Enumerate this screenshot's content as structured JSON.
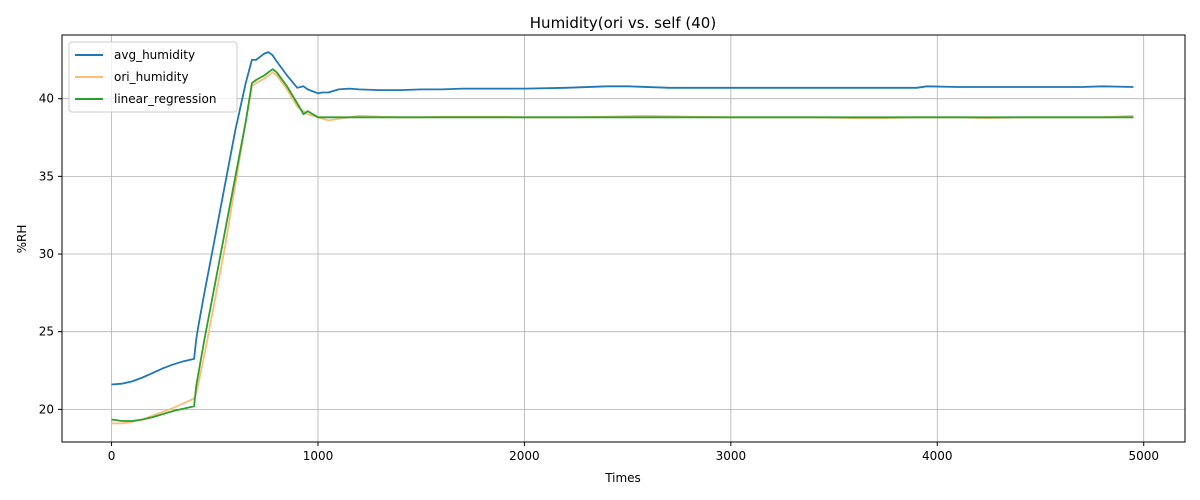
{
  "chart_data": {
    "type": "line",
    "title": "Humidity(ori vs. self (40)",
    "xlabel": "Times",
    "ylabel": "%RH",
    "xlim": [
      -240,
      5200
    ],
    "ylim": [
      17.9,
      44.1
    ],
    "xticks": [
      0,
      1000,
      2000,
      3000,
      4000,
      5000
    ],
    "yticks": [
      20,
      25,
      30,
      35,
      40
    ],
    "grid": true,
    "legend": "top-left",
    "series": [
      {
        "name": "avg_humidity",
        "color": "#1f77b4",
        "x": [
          0,
          50,
          100,
          150,
          200,
          250,
          300,
          350,
          400,
          410,
          420,
          450,
          500,
          550,
          600,
          650,
          680,
          700,
          720,
          740,
          760,
          780,
          800,
          850,
          900,
          930,
          950,
          1000,
          1020,
          1050,
          1100,
          1150,
          1200,
          1300,
          1400,
          1500,
          1600,
          1700,
          1800,
          2000,
          2200,
          2400,
          2500,
          2700,
          2900,
          3000,
          3200,
          3400,
          3550,
          3700,
          3900,
          3950,
          4100,
          4300,
          4500,
          4700,
          4800,
          4950
        ],
        "y": [
          21.6,
          21.65,
          21.8,
          22.05,
          22.35,
          22.65,
          22.9,
          23.1,
          23.25,
          24.5,
          25.3,
          27.5,
          31.0,
          34.5,
          38.0,
          41.0,
          42.5,
          42.5,
          42.7,
          42.9,
          43.0,
          42.8,
          42.4,
          41.5,
          40.7,
          40.8,
          40.6,
          40.35,
          40.4,
          40.4,
          40.6,
          40.65,
          40.6,
          40.55,
          40.55,
          40.6,
          40.6,
          40.65,
          40.65,
          40.65,
          40.7,
          40.8,
          40.8,
          40.7,
          40.7,
          40.7,
          40.7,
          40.7,
          40.7,
          40.7,
          40.7,
          40.8,
          40.75,
          40.75,
          40.75,
          40.75,
          40.8,
          40.75
        ]
      },
      {
        "name": "ori_humidity",
        "color": "#ffbb78",
        "x": [
          0,
          50,
          100,
          150,
          200,
          250,
          300,
          350,
          400,
          410,
          450,
          500,
          550,
          600,
          650,
          680,
          700,
          740,
          780,
          800,
          850,
          900,
          950,
          1000,
          1050,
          1100,
          1150,
          1200,
          1300,
          1400,
          1500,
          1600,
          1700,
          1800,
          1900,
          2000,
          2200,
          2400,
          2600,
          2800,
          3000,
          3200,
          3400,
          3600,
          3750,
          3900,
          4100,
          4250,
          4400,
          4600,
          4800,
          4950
        ],
        "y": [
          19.1,
          19.1,
          19.2,
          19.35,
          19.6,
          19.85,
          20.1,
          20.4,
          20.7,
          21.0,
          23.5,
          27.0,
          30.5,
          34.5,
          38.5,
          40.8,
          41.0,
          41.3,
          41.7,
          41.5,
          40.6,
          39.5,
          39.0,
          38.8,
          38.6,
          38.7,
          38.8,
          38.9,
          38.85,
          38.8,
          38.8,
          38.85,
          38.85,
          38.85,
          38.85,
          38.8,
          38.8,
          38.85,
          38.9,
          38.85,
          38.8,
          38.8,
          38.8,
          38.75,
          38.75,
          38.8,
          38.8,
          38.75,
          38.8,
          38.8,
          38.8,
          38.9
        ]
      },
      {
        "name": "linear_regression",
        "color": "#2ca02c",
        "x": [
          0,
          50,
          100,
          150,
          200,
          250,
          300,
          350,
          400,
          410,
          450,
          500,
          550,
          600,
          650,
          680,
          700,
          740,
          780,
          800,
          850,
          900,
          930,
          950,
          1000,
          1050,
          1100,
          1200,
          1400,
          1600,
          1800,
          2000,
          2200,
          2400,
          2600,
          2800,
          3000,
          3200,
          3400,
          3600,
          3800,
          4000,
          4200,
          4400,
          4600,
          4800,
          4950
        ],
        "y": [
          19.35,
          19.25,
          19.25,
          19.35,
          19.5,
          19.7,
          19.9,
          20.05,
          20.2,
          21.5,
          24.5,
          28.0,
          31.5,
          35.0,
          38.5,
          41.0,
          41.2,
          41.5,
          41.9,
          41.7,
          40.8,
          39.7,
          39.0,
          39.2,
          38.8,
          38.8,
          38.8,
          38.8,
          38.8,
          38.8,
          38.8,
          38.8,
          38.8,
          38.8,
          38.8,
          38.8,
          38.8,
          38.8,
          38.8,
          38.8,
          38.8,
          38.8,
          38.8,
          38.8,
          38.8,
          38.8,
          38.8
        ]
      }
    ]
  }
}
